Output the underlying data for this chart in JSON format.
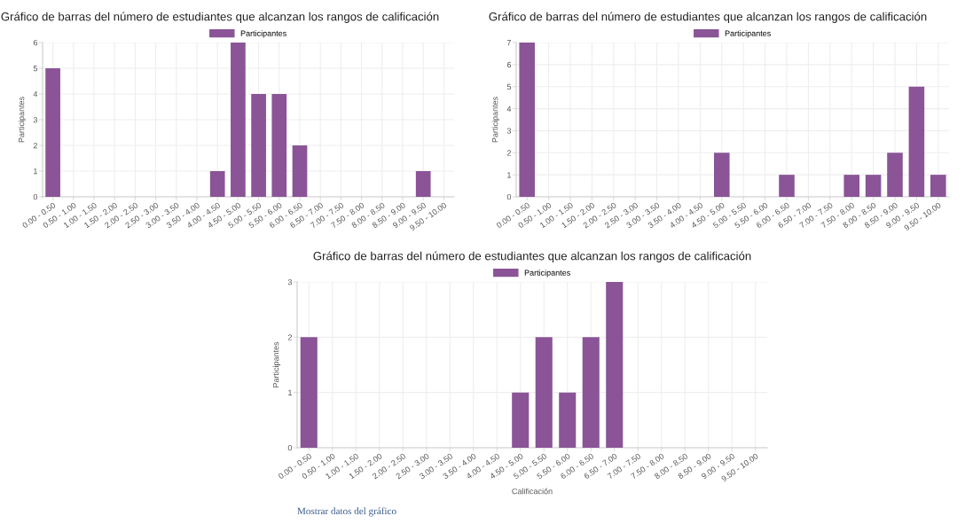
{
  "chart_data": [
    {
      "type": "bar",
      "title": "Gráfico de barras del número de estudiantes que alcanzan los rangos de calificación",
      "ylabel": "Participantes",
      "categories": [
        "0.00 - 0.50",
        "0.50 - 1.00",
        "1.00 - 1.50",
        "1.50 - 2.00",
        "2.00 - 2.50",
        "2.50 - 3.00",
        "3.00 - 3.50",
        "3.50 - 4.00",
        "4.00 - 4.50",
        "4.50 - 5.00",
        "5.00 - 5.50",
        "5.50 - 6.00",
        "6.00 - 6.50",
        "6.50 - 7.00",
        "7.00 - 7.50",
        "7.50 - 8.00",
        "8.00 - 8.50",
        "8.50 - 9.00",
        "9.00 - 9.50",
        "9.50 - 10.00"
      ],
      "series": [
        {
          "name": "Participantes",
          "color": "#8a5497",
          "values": [
            5,
            0,
            0,
            0,
            0,
            0,
            0,
            0,
            1,
            6,
            4,
            4,
            2,
            0,
            0,
            0,
            0,
            0,
            1,
            0
          ]
        }
      ],
      "ylim": [
        0,
        6
      ],
      "yticks": [
        0,
        1,
        2,
        3,
        4,
        5,
        6
      ],
      "grid": true,
      "legend": "top"
    },
    {
      "type": "bar",
      "title": "Gráfico de barras del número de estudiantes que alcanzan los rangos de calificación",
      "ylabel": "Participantes",
      "categories": [
        "0.00 - 0.50",
        "0.50 - 1.00",
        "1.00 - 1.50",
        "1.50 - 2.00",
        "2.00 - 2.50",
        "2.50 - 3.00",
        "3.00 - 3.50",
        "3.50 - 4.00",
        "4.00 - 4.50",
        "4.50 - 5.00",
        "5.00 - 5.50",
        "5.50 - 6.00",
        "6.00 - 6.50",
        "6.50 - 7.00",
        "7.00 - 7.50",
        "7.50 - 8.00",
        "8.00 - 8.50",
        "8.50 - 9.00",
        "9.00 - 9.50",
        "9.50 - 10.00"
      ],
      "series": [
        {
          "name": "Participantes",
          "color": "#8a5497",
          "values": [
            7,
            0,
            0,
            0,
            0,
            0,
            0,
            0,
            0,
            2,
            0,
            0,
            1,
            0,
            0,
            1,
            1,
            2,
            5,
            1
          ]
        }
      ],
      "ylim": [
        0,
        7
      ],
      "yticks": [
        0,
        1,
        2,
        3,
        4,
        5,
        6,
        7
      ],
      "grid": true,
      "legend": "top"
    },
    {
      "type": "bar",
      "title": "Gráfico de barras del número de estudiantes que alcanzan los rangos de calificación",
      "ylabel": "Participantes",
      "xlabel": "Calificación",
      "categories": [
        "0.00 - 0.50",
        "0.50 - 1.00",
        "1.00 - 1.50",
        "1.50 - 2.00",
        "2.00 - 2.50",
        "2.50 - 3.00",
        "3.00 - 3.50",
        "3.50 - 4.00",
        "4.00 - 4.50",
        "4.50 - 5.00",
        "5.00 - 5.50",
        "5.50 - 6.00",
        "6.00 - 6.50",
        "6.50 - 7.00",
        "7.00 - 7.50",
        "7.50 - 8.00",
        "8.00 - 8.50",
        "8.50 - 9.00",
        "9.00 - 9.50",
        "9.50 - 10.00"
      ],
      "series": [
        {
          "name": "Participantes",
          "color": "#8a5497",
          "values": [
            2,
            0,
            0,
            0,
            0,
            0,
            0,
            0,
            0,
            1,
            2,
            1,
            2,
            3,
            0,
            0,
            0,
            0,
            0,
            0
          ]
        }
      ],
      "ylim": [
        0,
        3
      ],
      "yticks": [
        0,
        1,
        2,
        3
      ],
      "grid": true,
      "legend": "top",
      "annotations": [
        "Mostrar datos del gráfico"
      ]
    }
  ]
}
